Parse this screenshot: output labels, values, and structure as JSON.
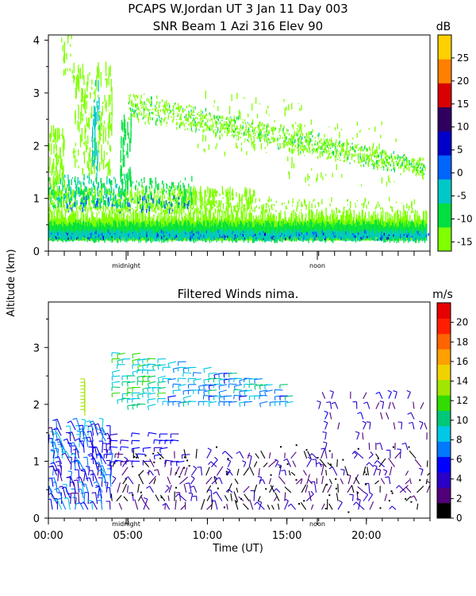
{
  "figure": {
    "title_line1": "PCAPS W.Jordan UT   3 Jan 11 Day 003",
    "ylabel": "Altitude (km)",
    "xlabel": "Time (UT)"
  },
  "chart_data": [
    {
      "type": "heatmap",
      "title": "SNR Beam 1 Azi 316 Elev 90",
      "x_range": [
        0,
        24
      ],
      "ylim": [
        0,
        4.1
      ],
      "yticks": [
        "0",
        "1",
        "2",
        "3",
        "4"
      ],
      "time_markers": [
        "midnight",
        "noon"
      ],
      "colorbar": {
        "unit": "dB",
        "tick_labels": [
          "25",
          "20",
          "15",
          "10",
          "5",
          "0",
          "-5",
          "-10",
          "-15"
        ],
        "range": [
          -17,
          30
        ],
        "colors": [
          "#7fff00",
          "#00e040",
          "#00c8c8",
          "#0064ff",
          "#0000c8",
          "#300060",
          "#d80000",
          "#ff8000",
          "#ffd000"
        ]
      },
      "regions": [
        {
          "time": [
            0,
            24
          ],
          "alt": [
            0.2,
            0.7
          ],
          "level": "-5 to -10 dB"
        },
        {
          "time": [
            0,
            13
          ],
          "alt": [
            0.7,
            1.5
          ],
          "level": "-10 to -15 dB"
        },
        {
          "time": [
            6,
            23.5
          ],
          "alt": [
            1.6,
            2.9
          ],
          "level": "-15 dB (descending layer)"
        },
        {
          "time": [
            0.5,
            4
          ],
          "alt": [
            1.5,
            3.4
          ],
          "level": "-15 dB"
        }
      ]
    },
    {
      "type": "scatter",
      "title": "Filtered Winds nima.",
      "x_range": [
        0,
        24
      ],
      "ylim": [
        0,
        3.8
      ],
      "xticks": [
        "00:00",
        "05:00",
        "10:00",
        "15:00",
        "20:00"
      ],
      "yticks": [
        "0",
        "1",
        "2",
        "3"
      ],
      "time_markers": [
        "midnight",
        "noon"
      ],
      "colorbar": {
        "unit": "m/s",
        "tick_labels": [
          "20",
          "18",
          "16",
          "14",
          "12",
          "10",
          "8",
          "6",
          "4",
          "2",
          "0"
        ],
        "range": [
          0,
          22
        ],
        "colors": [
          "#000000",
          "#500078",
          "#2800c8",
          "#0000ff",
          "#0078ff",
          "#00c8e6",
          "#00c878",
          "#32dc00",
          "#a0e600",
          "#f0d200",
          "#ffa000",
          "#ff6400",
          "#ff1e00",
          "#e60000"
        ]
      },
      "series": [
        {
          "time": [
            0,
            4
          ],
          "alt": [
            0.1,
            1.6
          ],
          "speed": "4-8"
        },
        {
          "time": [
            2.3,
            2.3
          ],
          "alt": [
            1.8,
            2.3
          ],
          "speed": "12-14"
        },
        {
          "time": [
            4.5,
            7.5
          ],
          "alt": [
            2.0,
            3.0
          ],
          "speed": "8-12"
        },
        {
          "time": [
            7.5,
            15.5
          ],
          "alt": [
            2.0,
            2.7
          ],
          "speed": "6-10"
        },
        {
          "time": [
            4,
            24
          ],
          "alt": [
            0.1,
            1.2
          ],
          "speed": "0-4"
        },
        {
          "time": [
            17,
            24
          ],
          "alt": [
            1.2,
            2.2
          ],
          "speed": "2-4"
        }
      ]
    }
  ]
}
